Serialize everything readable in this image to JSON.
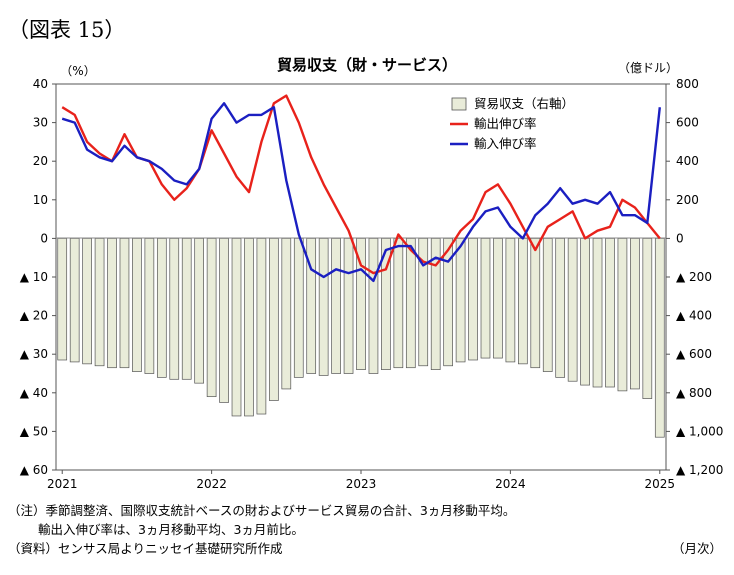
{
  "figure_label": "（図表 15）",
  "notes": {
    "line1": "（注）季節調整済、国際収支統計ベースの財およびサービス貿易の合計、3ヵ月移動平均。",
    "line2": "輸出入伸び率は、3ヵ月移動平均、3ヵ月前比。",
    "line3": "（資料）センサス局よりニッセイ基礎研究所作成"
  },
  "x_unit_label": "（月次）",
  "chart_data": {
    "type": "bar",
    "title": "貿易収支（財・サービス）",
    "left_unit": "（%）",
    "right_unit": "（億ドル）",
    "left_axis": {
      "ylim": [
        -60,
        40
      ],
      "ticks": [
        40,
        30,
        20,
        10,
        0,
        -10,
        -20,
        -30,
        -40,
        -50,
        -60
      ],
      "tick_labels": [
        "40",
        "30",
        "20",
        "10",
        "0",
        "▲ 10",
        "▲ 20",
        "▲ 30",
        "▲ 40",
        "▲ 50",
        "▲ 60"
      ]
    },
    "right_axis": {
      "ylim": [
        -1200,
        800
      ],
      "ticks": [
        800,
        600,
        400,
        200,
        0,
        -200,
        -400,
        -600,
        -800,
        -1000,
        -1200
      ],
      "tick_labels": [
        "800",
        "600",
        "400",
        "200",
        "0",
        "▲ 200",
        "▲ 400",
        "▲ 600",
        "▲ 800",
        "▲ 1,000",
        "▲ 1,200"
      ]
    },
    "x_tick_labels": [
      {
        "index": 0,
        "label": "2021"
      },
      {
        "index": 12,
        "label": "2022"
      },
      {
        "index": 24,
        "label": "2023"
      },
      {
        "index": 36,
        "label": "2024"
      },
      {
        "index": 48,
        "label": "2025"
      }
    ],
    "n_months": 49,
    "legend_position": "top-center",
    "series": [
      {
        "name": "貿易収支（右軸）",
        "type": "bar",
        "axis": "right",
        "color": "#e9ecd9",
        "stroke": "#555555",
        "values": [
          -630,
          -640,
          -650,
          -660,
          -670,
          -670,
          -690,
          -700,
          -720,
          -730,
          -730,
          -750,
          -820,
          -850,
          -920,
          -920,
          -910,
          -840,
          -780,
          -720,
          -700,
          -710,
          -700,
          -700,
          -680,
          -700,
          -680,
          -670,
          -670,
          -660,
          -680,
          -660,
          -640,
          -630,
          -620,
          -620,
          -640,
          -650,
          -670,
          -690,
          -720,
          -740,
          -760,
          -770,
          -770,
          -790,
          -780,
          -830,
          -1030
        ]
      },
      {
        "name": "輸出伸び率",
        "type": "line",
        "axis": "left",
        "color": "#e8221b",
        "values": [
          34,
          32,
          25,
          22,
          20,
          27,
          21,
          20,
          14,
          10,
          13,
          18,
          28,
          22,
          16,
          12,
          25,
          35,
          37,
          30,
          21,
          14,
          8,
          2,
          -7,
          -9,
          -8,
          1,
          -3,
          -6,
          -7,
          -3,
          2,
          5,
          12,
          14,
          9,
          3,
          -3,
          3,
          5,
          7,
          0,
          2,
          3,
          10,
          8,
          4,
          0
        ]
      },
      {
        "name": "輸入伸び率",
        "type": "line",
        "axis": "left",
        "color": "#1b1fc1",
        "values": [
          31,
          30,
          23,
          21,
          20,
          24,
          21,
          20,
          18,
          15,
          14,
          18,
          31,
          35,
          30,
          32,
          32,
          34,
          15,
          1,
          -8,
          -10,
          -8,
          -9,
          -8,
          -11,
          -3,
          -2,
          -2,
          -7,
          -5,
          -6,
          -2,
          3,
          7,
          8,
          3,
          0,
          6,
          9,
          13,
          9,
          10,
          9,
          12,
          6,
          6,
          4,
          34
        ]
      }
    ]
  }
}
